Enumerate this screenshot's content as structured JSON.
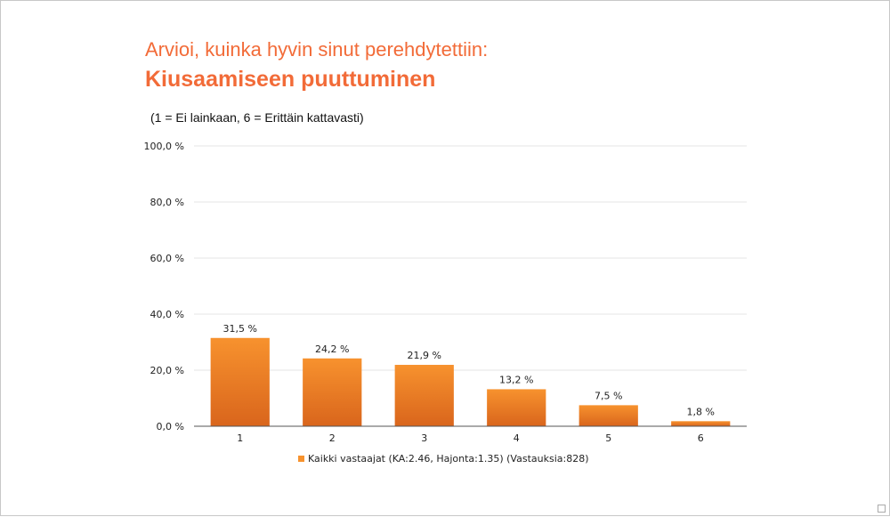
{
  "slide": {
    "title": "Arvioi, kuinka hyvin sinut perehdytettiin:",
    "heading": "Kiusaamiseen puuttuminen",
    "subtitle": "(1 = Ei lainkaan, 6 = Erittäin kattavasti)",
    "accent_color": "#f26b38"
  },
  "chart_data": {
    "type": "bar",
    "categories": [
      "1",
      "2",
      "3",
      "4",
      "5",
      "6"
    ],
    "series": [
      {
        "name": "Kaikki vastaajat (KA:2.46, Hajonta:1.35) (Vastauksia:828)",
        "values": [
          31.5,
          24.2,
          21.9,
          13.2,
          7.5,
          1.8
        ],
        "value_labels": [
          "31,5 %",
          "24,2 %",
          "21,9 %",
          "13,2 %",
          "7,5 %",
          "1,8 %"
        ],
        "color": "#f7922e"
      }
    ],
    "y_ticks": [
      "0,0 %",
      "20,0 %",
      "40,0 %",
      "60,0 %",
      "80,0 %",
      "100,0 %"
    ],
    "y_tick_values": [
      0,
      20,
      40,
      60,
      80,
      100
    ],
    "ylim": [
      0,
      100
    ],
    "grid": true,
    "legend_position": "bottom"
  }
}
